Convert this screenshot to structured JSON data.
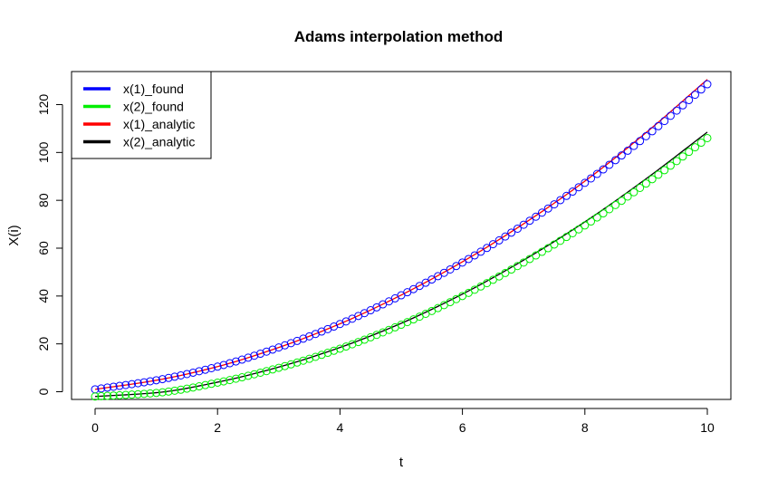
{
  "chart_data": {
    "type": "line",
    "title": "Adams interpolation method",
    "xlabel": "t",
    "ylabel": "X(i)",
    "xlim": [
      0,
      10
    ],
    "ylim": [
      -3,
      133
    ],
    "xticks": [
      0,
      2,
      4,
      6,
      8,
      10
    ],
    "yticks": [
      0,
      20,
      40,
      60,
      80,
      100,
      120
    ],
    "xtick_labels": [
      "0",
      "2",
      "4",
      "6",
      "8",
      "10"
    ],
    "ytick_labels": [
      "0",
      "20",
      "40",
      "60",
      "80",
      "100",
      "120"
    ],
    "grid": false,
    "legend_position": "top-left",
    "x": [
      0,
      1,
      2,
      3,
      4,
      5,
      6,
      7,
      8,
      9,
      10
    ],
    "series": [
      {
        "name": "x(1)_found",
        "style": "points",
        "color": "#0000ff",
        "values": [
          1,
          4.8,
          10.5,
          18.5,
          28.3,
          40.3,
          54.0,
          69.8,
          87.3,
          106.8,
          128.5
        ]
      },
      {
        "name": "x(2)_found",
        "style": "points",
        "color": "#00ee00",
        "values": [
          -2,
          -0.5,
          3.8,
          10.0,
          18.0,
          28.0,
          40.0,
          54.0,
          69.5,
          87.0,
          106.0
        ]
      },
      {
        "name": "x(1)_analytic",
        "style": "line",
        "color": "#ff0000",
        "values": [
          1,
          4.8,
          10.5,
          18.5,
          28.4,
          40.4,
          54.3,
          70.2,
          88.0,
          108.3,
          130.5
        ]
      },
      {
        "name": "x(2)_analytic",
        "style": "line",
        "color": "#000000",
        "values": [
          -2,
          -0.4,
          4.0,
          10.3,
          18.5,
          28.6,
          40.8,
          55.0,
          71.0,
          89.0,
          108.5
        ]
      }
    ]
  }
}
